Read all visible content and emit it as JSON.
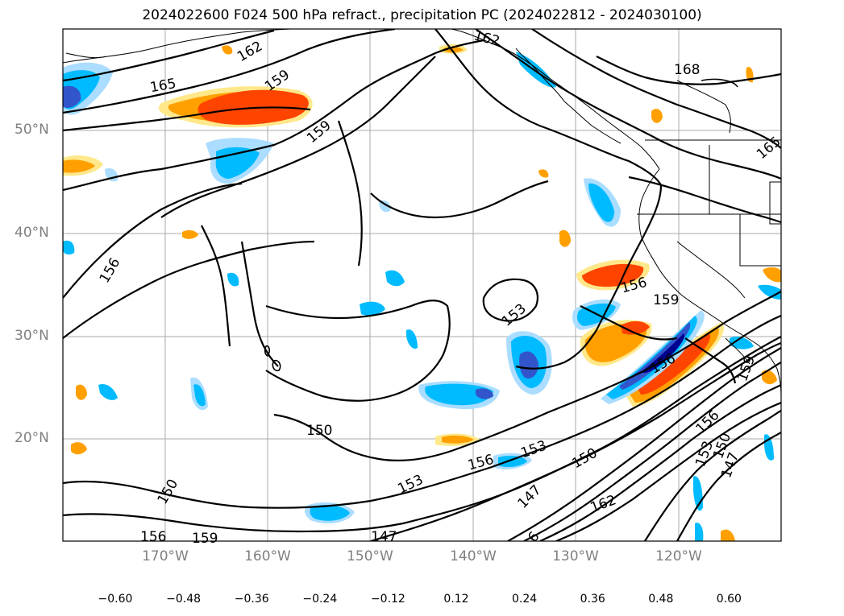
{
  "title": "2024022600 F024 500 hPa refract., precipitation PC (2024022812 - 2024030100)",
  "axes": {
    "lat_labels": [
      "50°N",
      "40°N",
      "30°N",
      "20°N"
    ],
    "lon_labels": [
      "170°W",
      "160°W",
      "150°W",
      "140°W",
      "130°W",
      "120°W"
    ]
  },
  "contour_labels": [
    "162",
    "165",
    "159",
    "159",
    "162",
    "168",
    "165",
    "156",
    "156",
    "159",
    "153",
    "156",
    "153",
    "150",
    "153",
    "156",
    "150",
    "147",
    "162",
    "156",
    "153",
    "150",
    "147",
    "159",
    "150",
    "156",
    "159",
    "147",
    "6"
  ],
  "colorbar": {
    "colors": [
      "#9933cc",
      "#000090",
      "#3355cc",
      "#00bbff",
      "#aaddff",
      "#ffffff",
      "#ffe88a",
      "#ffa000",
      "#ff4400",
      "#b22222",
      "#ff88aa"
    ],
    "ticks": [
      "−0.60",
      "−0.48",
      "−0.36",
      "−0.24",
      "−0.12",
      "0.12",
      "0.24",
      "0.36",
      "0.48",
      "0.60"
    ]
  }
}
